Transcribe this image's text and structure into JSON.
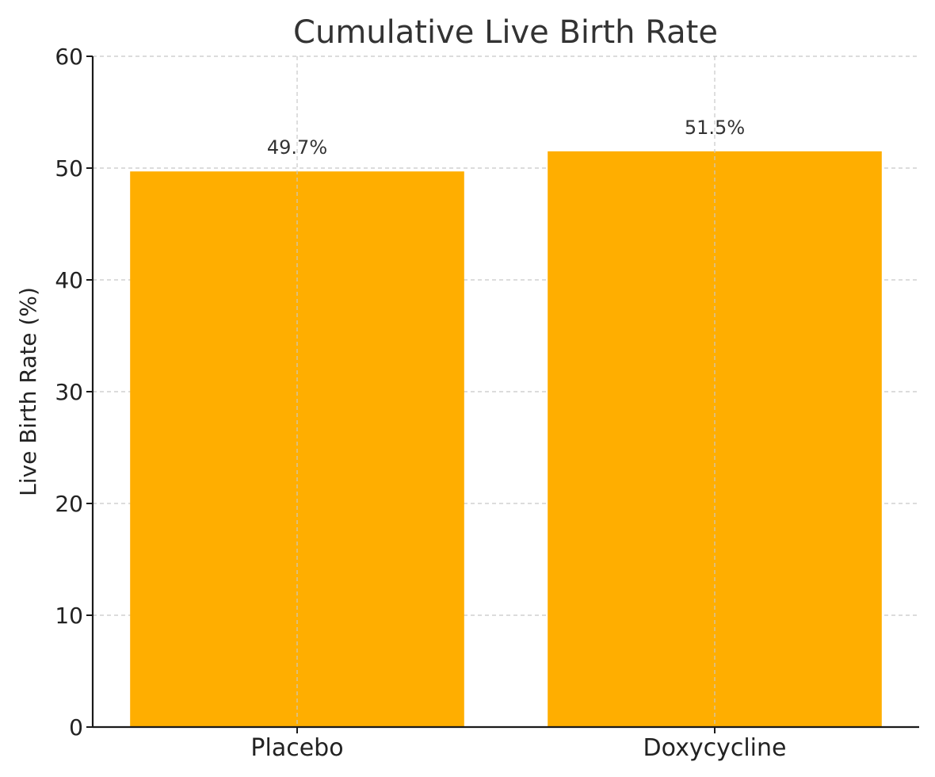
{
  "chart_data": {
    "type": "bar",
    "title": "Cumulative Live Birth Rate",
    "xlabel": "",
    "ylabel": "Live Birth Rate (%)",
    "categories": [
      "Placebo",
      "Doxycycline"
    ],
    "values": [
      49.7,
      51.5
    ],
    "data_labels": [
      "49.7%",
      "51.5%"
    ],
    "ylim": [
      0,
      60
    ],
    "yticks": [
      0,
      10,
      20,
      30,
      40,
      50,
      60
    ],
    "bar_color": "#FFAE00",
    "grid": true,
    "legend": false
  }
}
